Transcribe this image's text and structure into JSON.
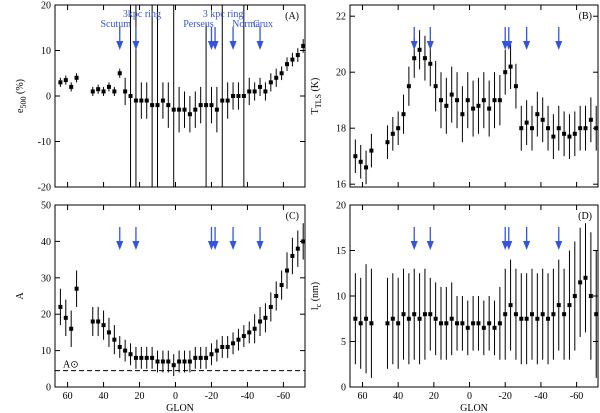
{
  "chart_data": [
    {
      "type": "scatter",
      "panel_label": "(A)",
      "ylabel": {
        "main": "e",
        "sub": "500",
        "unit": " (%)"
      },
      "xlim": [
        67,
        -72
      ],
      "ylim": [
        -20,
        20
      ],
      "xticks": [
        60,
        40,
        20,
        0,
        -20,
        -40,
        -60
      ],
      "xticklabels": false,
      "yticks": [
        -20,
        -10,
        0,
        10,
        20
      ],
      "x": [
        64,
        61,
        58,
        55,
        46,
        43,
        40,
        37,
        34,
        31,
        28,
        25,
        22,
        19,
        16,
        13,
        10,
        7,
        4,
        1,
        -2,
        -5,
        -8,
        -11,
        -14,
        -17,
        -20,
        -23,
        -26,
        -29,
        -32,
        -35,
        -38,
        -41,
        -44,
        -47,
        -50,
        -53,
        -56,
        -59,
        -62,
        -65,
        -68,
        -71
      ],
      "values": [
        3,
        3.5,
        2,
        4,
        1,
        1.5,
        1,
        2,
        1,
        5,
        1,
        0,
        -1,
        -1,
        -1,
        -2,
        -2,
        -1,
        -2,
        -3,
        -3,
        -3,
        -4,
        -3,
        -2,
        -2,
        -2,
        -3,
        -1,
        -1,
        0,
        0,
        0,
        1,
        1,
        2,
        1,
        3,
        4,
        5,
        7,
        8,
        9,
        11
      ],
      "errors": [
        1,
        1,
        1,
        1,
        1,
        1,
        1,
        1,
        1,
        1,
        3,
        30,
        30,
        4,
        4,
        30,
        30,
        4,
        5,
        30,
        5,
        4,
        4,
        4,
        4,
        18,
        4,
        5,
        30,
        4,
        3,
        3,
        20,
        3,
        2,
        2,
        2,
        2,
        2,
        1.5,
        1.5,
        1.5,
        1.5,
        1.5
      ],
      "color": "#000000",
      "arrow_color": "#3355dd",
      "arrows": [
        {
          "x": 31,
          "label": "Scutum"
        },
        {
          "x": 22,
          "label": "3kpc ring"
        },
        {
          "x": -20,
          "label": "Perseus"
        },
        {
          "x": -22,
          "label": "3 kpc ring"
        },
        {
          "x": -32,
          "label": "Norma"
        },
        {
          "x": -47,
          "label": "Crux"
        }
      ]
    },
    {
      "type": "scatter",
      "panel_label": "(B)",
      "ylabel": {
        "main": "T",
        "sub": "TLS",
        "unit": " (K)"
      },
      "xlim": [
        67,
        -72
      ],
      "ylim": [
        15.9,
        22.4
      ],
      "xticks": [
        60,
        40,
        20,
        0,
        -20,
        -40,
        -60
      ],
      "xticklabels": false,
      "yticks": [
        16,
        18,
        20,
        22
      ],
      "x": [
        64,
        61,
        58,
        55,
        46,
        43,
        40,
        37,
        34,
        31,
        28,
        25,
        22,
        19,
        16,
        13,
        10,
        7,
        4,
        1,
        -2,
        -5,
        -8,
        -11,
        -14,
        -17,
        -20,
        -23,
        -26,
        -29,
        -32,
        -35,
        -38,
        -41,
        -44,
        -47,
        -50,
        -53,
        -56,
        -59,
        -62,
        -65,
        -68,
        -71
      ],
      "values": [
        17,
        16.8,
        16.6,
        17.2,
        17.5,
        17.8,
        18,
        18.5,
        19.5,
        20.5,
        20.8,
        20.5,
        20.3,
        19.5,
        19,
        18.8,
        19.2,
        19,
        18.5,
        19,
        18.7,
        18.8,
        19,
        18.7,
        19,
        19,
        20,
        20.2,
        19.5,
        18,
        18.2,
        18,
        18.5,
        18.3,
        18,
        17.7,
        18,
        17.8,
        17.7,
        17.8,
        18,
        18,
        18.3,
        18
      ],
      "errors": [
        0.6,
        0.6,
        0.6,
        0.6,
        0.6,
        0.6,
        0.6,
        0.7,
        0.7,
        0.7,
        0.7,
        0.8,
        0.8,
        0.9,
        1,
        1,
        1,
        1,
        1,
        1,
        1,
        1,
        1,
        1,
        1,
        0.9,
        0.8,
        0.8,
        0.8,
        0.8,
        0.8,
        0.8,
        0.8,
        0.8,
        0.8,
        0.8,
        0.8,
        0.8,
        0.8,
        0.8,
        0.8,
        0.8,
        0.8,
        0.8
      ],
      "color": "#000000",
      "arrow_color": "#3355dd",
      "arrows": [
        {
          "x": 31
        },
        {
          "x": 22
        },
        {
          "x": -20
        },
        {
          "x": -22
        },
        {
          "x": -32
        },
        {
          "x": -50
        }
      ]
    },
    {
      "type": "scatter",
      "panel_label": "(C)",
      "ylabel": {
        "main": "A"
      },
      "xlabel": "GLON",
      "xlim": [
        67,
        -72
      ],
      "ylim": [
        0,
        50
      ],
      "xticks": [
        60,
        40,
        20,
        0,
        -20,
        -40,
        -60
      ],
      "xticklabels": true,
      "yticks": [
        0,
        10,
        20,
        30,
        40,
        50
      ],
      "x": [
        64,
        61,
        58,
        55,
        46,
        43,
        40,
        37,
        34,
        31,
        28,
        25,
        22,
        19,
        16,
        13,
        10,
        7,
        4,
        1,
        -2,
        -5,
        -8,
        -11,
        -14,
        -17,
        -20,
        -23,
        -26,
        -29,
        -32,
        -35,
        -38,
        -41,
        -44,
        -47,
        -50,
        -53,
        -56,
        -59,
        -62,
        -65,
        -68,
        -71
      ],
      "values": [
        22,
        19,
        16,
        27,
        18,
        18,
        17,
        15,
        13,
        11,
        10,
        9,
        8,
        8,
        8,
        8,
        7,
        7,
        7,
        6,
        7,
        7,
        7,
        8,
        8,
        8,
        9,
        10,
        11,
        11,
        12,
        13,
        14,
        15,
        16,
        18,
        19,
        22,
        25,
        28,
        32,
        36,
        38,
        40
      ],
      "errors": [
        5,
        5,
        5,
        5,
        4,
        4,
        4,
        4,
        4,
        3,
        3,
        3,
        3,
        3,
        3,
        3,
        3,
        3,
        3,
        3,
        3,
        3,
        3,
        3,
        3,
        3,
        3,
        3,
        3,
        3,
        3,
        3,
        3,
        3,
        4,
        4,
        4,
        4,
        4,
        4,
        5,
        5,
        5,
        5
      ],
      "color": "#000000",
      "arrow_color": "#3355dd",
      "hline": {
        "value": 4.5,
        "label": "A⊙"
      },
      "arrows": [
        {
          "x": 31
        },
        {
          "x": 22
        },
        {
          "x": -20
        },
        {
          "x": -22
        },
        {
          "x": -32
        },
        {
          "x": -47
        }
      ]
    },
    {
      "type": "scatter",
      "panel_label": "(D)",
      "ylabel": {
        "main": "l",
        "sub": "c",
        "unit": " (nm)"
      },
      "xlabel": "GLON",
      "xlim": [
        67,
        -72
      ],
      "ylim": [
        0,
        20
      ],
      "xticks": [
        60,
        40,
        20,
        0,
        -20,
        -40,
        -60
      ],
      "xticklabels": true,
      "yticks": [
        0,
        5,
        10,
        15,
        20
      ],
      "x": [
        64,
        61,
        58,
        55,
        46,
        43,
        40,
        37,
        34,
        31,
        28,
        25,
        22,
        19,
        16,
        13,
        10,
        7,
        4,
        1,
        -2,
        -5,
        -8,
        -11,
        -14,
        -17,
        -20,
        -23,
        -26,
        -29,
        -32,
        -35,
        -38,
        -41,
        -44,
        -47,
        -50,
        -53,
        -56,
        -59,
        -62,
        -65,
        -68,
        -71
      ],
      "values": [
        7.5,
        7,
        7.5,
        7,
        7,
        7.5,
        7,
        8,
        7.5,
        8,
        7.5,
        8,
        8,
        7.5,
        7,
        7,
        7.5,
        7,
        7,
        6.5,
        7,
        7,
        6.5,
        7,
        6.5,
        7,
        8,
        9,
        8,
        7.5,
        7.5,
        8,
        7.5,
        8,
        7.5,
        8,
        9,
        8,
        9,
        10,
        11.5,
        12,
        10,
        8
      ],
      "errors": [
        5,
        5,
        6,
        6,
        5,
        5,
        5,
        5,
        5,
        5,
        5,
        5,
        4,
        4,
        4,
        4,
        4,
        3,
        3,
        3,
        3,
        3,
        3,
        3,
        3,
        4,
        5,
        5,
        5,
        5,
        5,
        5,
        5,
        5,
        5,
        5,
        5,
        5,
        6,
        6,
        6,
        6,
        7,
        7
      ],
      "color": "#000000",
      "arrow_color": "#3355dd",
      "arrows": [
        {
          "x": 31
        },
        {
          "x": 22
        },
        {
          "x": -20
        },
        {
          "x": -22
        },
        {
          "x": -32
        },
        {
          "x": -50
        }
      ]
    }
  ]
}
